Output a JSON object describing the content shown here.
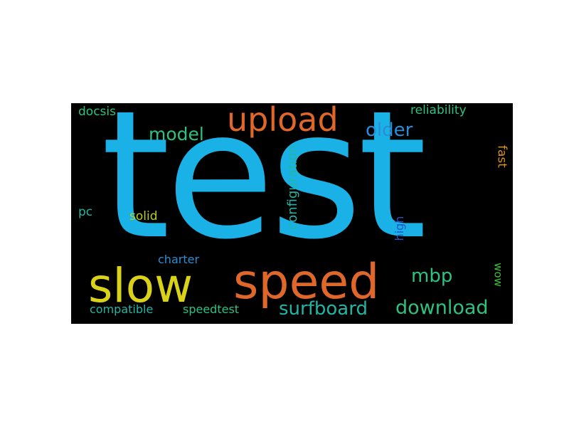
{
  "words": [
    {
      "text": "test",
      "color": "#1ab2e6"
    },
    {
      "text": "speed",
      "color": "#e0672a"
    },
    {
      "text": "slow",
      "color": "#d9d219"
    },
    {
      "text": "upload",
      "color": "#e0672a"
    },
    {
      "text": "surfboard",
      "color": "#22b5a5"
    },
    {
      "text": "download",
      "color": "#2ec27e"
    },
    {
      "text": "older",
      "color": "#2a8ed6"
    },
    {
      "text": "model",
      "color": "#2ec27e"
    },
    {
      "text": "mbp",
      "color": "#2ec27e"
    },
    {
      "text": "configuration",
      "color": "#22b5a5"
    },
    {
      "text": "reliability",
      "color": "#2ec27e"
    },
    {
      "text": "docsis",
      "color": "#2ec27e"
    },
    {
      "text": "compatible",
      "color": "#22b5a5"
    },
    {
      "text": "speedtest",
      "color": "#2ec27e"
    },
    {
      "text": "charter",
      "color": "#2a8ed6"
    },
    {
      "text": "solid",
      "color": "#b7cc1f"
    },
    {
      "text": "pc",
      "color": "#22b5a5"
    },
    {
      "text": "high",
      "color": "#2255cc"
    },
    {
      "text": "fast",
      "color": "#d9921a"
    },
    {
      "text": "wow",
      "color": "#3fbf3f"
    }
  ]
}
